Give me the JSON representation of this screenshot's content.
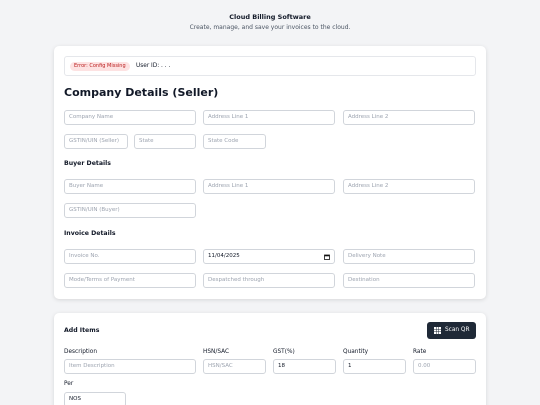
{
  "header": {
    "title": "Cloud Billing Software",
    "subtitle": "Create, manage, and save your invoices to the cloud."
  },
  "status": {
    "badge": "Error: Config Missing",
    "user_id": "User ID: . . ."
  },
  "seller": {
    "title": "Company Details (Seller)",
    "fields": [
      {
        "placeholder": "Company Name"
      },
      {
        "placeholder": "Address Line 1"
      },
      {
        "placeholder": "Address Line 2"
      },
      {
        "placeholder": "GSTIN/UIN (Seller)"
      },
      {
        "placeholder": "State"
      },
      {
        "placeholder": "State Code"
      }
    ]
  },
  "buyer": {
    "title": "Buyer Details",
    "fields": [
      {
        "placeholder": "Buyer Name"
      },
      {
        "placeholder": "Address Line 1"
      },
      {
        "placeholder": "Address Line 2"
      },
      {
        "placeholder": "GSTIN/UIN (Buyer)"
      }
    ]
  },
  "invoice": {
    "title": "Invoice Details",
    "fields": [
      {
        "placeholder": "Invoice No."
      },
      {
        "value": "11/04/2025"
      },
      {
        "placeholder": "Delivery Note"
      },
      {
        "placeholder": "Mode/Terms of Payment"
      },
      {
        "placeholder": "Despatched through"
      },
      {
        "placeholder": "Destination"
      }
    ]
  },
  "items": {
    "title": "Add Items",
    "button": "Scan QR",
    "labels": [
      "Description",
      "HSN/SAC",
      "GST(%)",
      "Quantity",
      "Rate"
    ],
    "fields": [
      {
        "placeholder": "Item Description"
      },
      {
        "placeholder": "HSN/SAC"
      },
      {
        "value": "18"
      },
      {
        "value": "1"
      },
      {
        "placeholder": "0.00"
      }
    ],
    "per_label": "Per",
    "per_field": {
      "value": "NOS"
    }
  }
}
